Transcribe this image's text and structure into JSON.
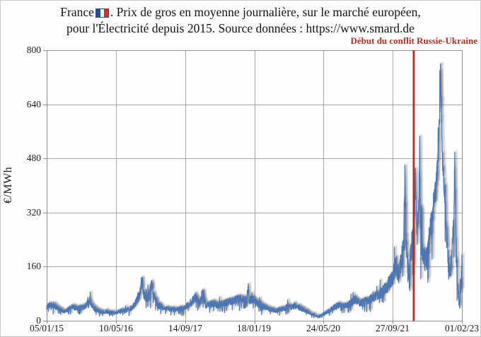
{
  "title": {
    "line1_pre_flag": "France",
    "line1_post_flag": ". Prix de gros en moyenne journalière, sur le marché européen,",
    "line2": "pour l'Électricité depuis 2015. Source données : https://www.smard.de",
    "flag_colors": [
      "#1f4fa0",
      "#f6f6f6",
      "#d22d2d"
    ]
  },
  "annotation": {
    "label": "Début du conflit Russie-Ukraine",
    "text_color": "#a5322a",
    "line_color": "#ae2f26",
    "event_day": 2607
  },
  "chart_data": {
    "type": "line",
    "title": "France. Prix de gros en moyenne journalière, sur le marché européen, pour l'Électricité depuis 2015.",
    "source": "https://www.smard.de",
    "xlabel": "",
    "ylabel": "€/MWh",
    "ylim": [
      0,
      800
    ],
    "grid": true,
    "legend_position": "none",
    "y_ticks": [
      "0",
      "160",
      "320",
      "480",
      "640",
      "800"
    ],
    "x_ticks": [
      "05/01/15",
      "10/05/16",
      "14/09/17",
      "18/01/19",
      "24/05/20",
      "27/09/21",
      "01/02/23"
    ],
    "x_start_date": "05/01/15",
    "x_end_date": "01/02/23",
    "x_domain_days": 2949,
    "daily_volatility_frac": 0.2,
    "event_line": {
      "day": 2607,
      "label": "Début du conflit Russie-Ukraine"
    },
    "series": [
      {
        "name": "France",
        "unit": "€/MWh",
        "color": "#4e76b4",
        "anchors_day_value": [
          [
            0,
            40
          ],
          [
            25,
            47
          ],
          [
            60,
            40
          ],
          [
            90,
            34
          ],
          [
            120,
            27
          ],
          [
            150,
            33
          ],
          [
            180,
            41
          ],
          [
            210,
            36
          ],
          [
            240,
            38
          ],
          [
            270,
            42
          ],
          [
            306,
            60
          ],
          [
            330,
            38
          ],
          [
            365,
            30
          ],
          [
            395,
            26
          ],
          [
            425,
            26
          ],
          [
            455,
            24
          ],
          [
            485,
            22
          ],
          [
            515,
            28
          ],
          [
            545,
            31
          ],
          [
            575,
            33
          ],
          [
            605,
            38
          ],
          [
            635,
            55
          ],
          [
            660,
            78
          ],
          [
            678,
            122
          ],
          [
            688,
            80
          ],
          [
            705,
            68
          ],
          [
            725,
            72
          ],
          [
            748,
            108
          ],
          [
            760,
            72
          ],
          [
            790,
            48
          ],
          [
            820,
            40
          ],
          [
            850,
            36
          ],
          [
            880,
            33
          ],
          [
            910,
            32
          ],
          [
            940,
            34
          ],
          [
            970,
            38
          ],
          [
            1000,
            45
          ],
          [
            1030,
            56
          ],
          [
            1060,
            72
          ],
          [
            1085,
            52
          ],
          [
            1108,
            85
          ],
          [
            1130,
            45
          ],
          [
            1160,
            49
          ],
          [
            1190,
            52
          ],
          [
            1220,
            46
          ],
          [
            1250,
            50
          ],
          [
            1280,
            54
          ],
          [
            1310,
            58
          ],
          [
            1340,
            61
          ],
          [
            1370,
            64
          ],
          [
            1400,
            62
          ],
          [
            1422,
            60
          ],
          [
            1430,
            105
          ],
          [
            1438,
            62
          ],
          [
            1470,
            61
          ],
          [
            1500,
            50
          ],
          [
            1530,
            43
          ],
          [
            1560,
            38
          ],
          [
            1590,
            33
          ],
          [
            1620,
            30
          ],
          [
            1650,
            33
          ],
          [
            1680,
            36
          ],
          [
            1710,
            41
          ],
          [
            1740,
            41
          ],
          [
            1770,
            43
          ],
          [
            1800,
            38
          ],
          [
            1830,
            32
          ],
          [
            1860,
            25
          ],
          [
            1890,
            18
          ],
          [
            1920,
            13
          ],
          [
            1950,
            16
          ],
          [
            1980,
            24
          ],
          [
            2010,
            31
          ],
          [
            2040,
            39
          ],
          [
            2070,
            46
          ],
          [
            2100,
            43
          ],
          [
            2130,
            45
          ],
          [
            2160,
            52
          ],
          [
            2190,
            62
          ],
          [
            2220,
            52
          ],
          [
            2250,
            56
          ],
          [
            2280,
            60
          ],
          [
            2310,
            66
          ],
          [
            2340,
            72
          ],
          [
            2370,
            80
          ],
          [
            2400,
            92
          ],
          [
            2430,
            110
          ],
          [
            2457,
            128
          ],
          [
            2480,
            165
          ],
          [
            2500,
            135
          ],
          [
            2520,
            175
          ],
          [
            2535,
            225
          ],
          [
            2545,
            445
          ],
          [
            2552,
            260
          ],
          [
            2560,
            180
          ],
          [
            2572,
            135
          ],
          [
            2585,
            210
          ],
          [
            2600,
            235
          ],
          [
            2612,
            330
          ],
          [
            2619,
            430
          ],
          [
            2626,
            300
          ],
          [
            2635,
            255
          ],
          [
            2645,
            350
          ],
          [
            2649,
            545
          ],
          [
            2654,
            300
          ],
          [
            2662,
            230
          ],
          [
            2672,
            205
          ],
          [
            2685,
            180
          ],
          [
            2700,
            190
          ],
          [
            2715,
            235
          ],
          [
            2730,
            285
          ],
          [
            2745,
            340
          ],
          [
            2760,
            385
          ],
          [
            2772,
            430
          ],
          [
            2782,
            500
          ],
          [
            2791,
            620
          ],
          [
            2798,
            740
          ],
          [
            2804,
            620
          ],
          [
            2812,
            480
          ],
          [
            2820,
            420
          ],
          [
            2830,
            350
          ],
          [
            2840,
            260
          ],
          [
            2850,
            185
          ],
          [
            2860,
            155
          ],
          [
            2870,
            160
          ],
          [
            2880,
            210
          ],
          [
            2890,
            290
          ],
          [
            2898,
            465
          ],
          [
            2904,
            330
          ],
          [
            2912,
            160
          ],
          [
            2920,
            95
          ],
          [
            2928,
            80
          ],
          [
            2934,
            35
          ],
          [
            2939,
            150
          ],
          [
            2944,
            110
          ],
          [
            2949,
            175
          ]
        ]
      }
    ]
  }
}
